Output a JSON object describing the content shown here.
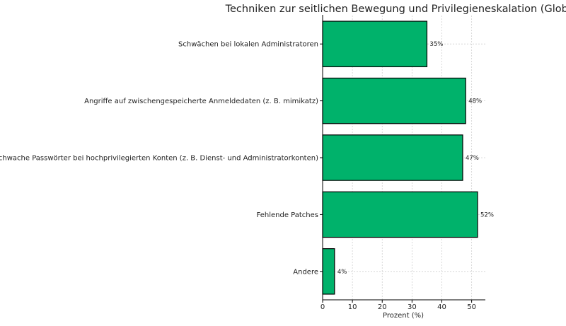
{
  "chart_data": {
    "type": "bar",
    "orientation": "horizontal",
    "title": "Techniken zur seitlichen Bewegung und Privilegieneskalation (Global)",
    "xlabel": "Prozent (%)",
    "ylabel": "",
    "categories": [
      "Schwächen bei lokalen Administratoren",
      "Angriffe auf zwischengespeicherte Anmeldedaten (z. B. mimikatz)",
      "Schwache Passwörter bei hochprivilegierten Konten (z. B. Dienst- und Administratorkonten)",
      "Fehlende Patches",
      "Andere"
    ],
    "values": [
      35,
      48,
      47,
      52,
      4
    ],
    "data_labels": [
      "35%",
      "48%",
      "47%",
      "52%",
      "4%"
    ],
    "xlim": [
      0,
      54.6
    ],
    "xticks": [
      0,
      10,
      20,
      30,
      40,
      50
    ],
    "grid": true,
    "bar_color": "#00b26b",
    "edge_color": "#000000"
  }
}
